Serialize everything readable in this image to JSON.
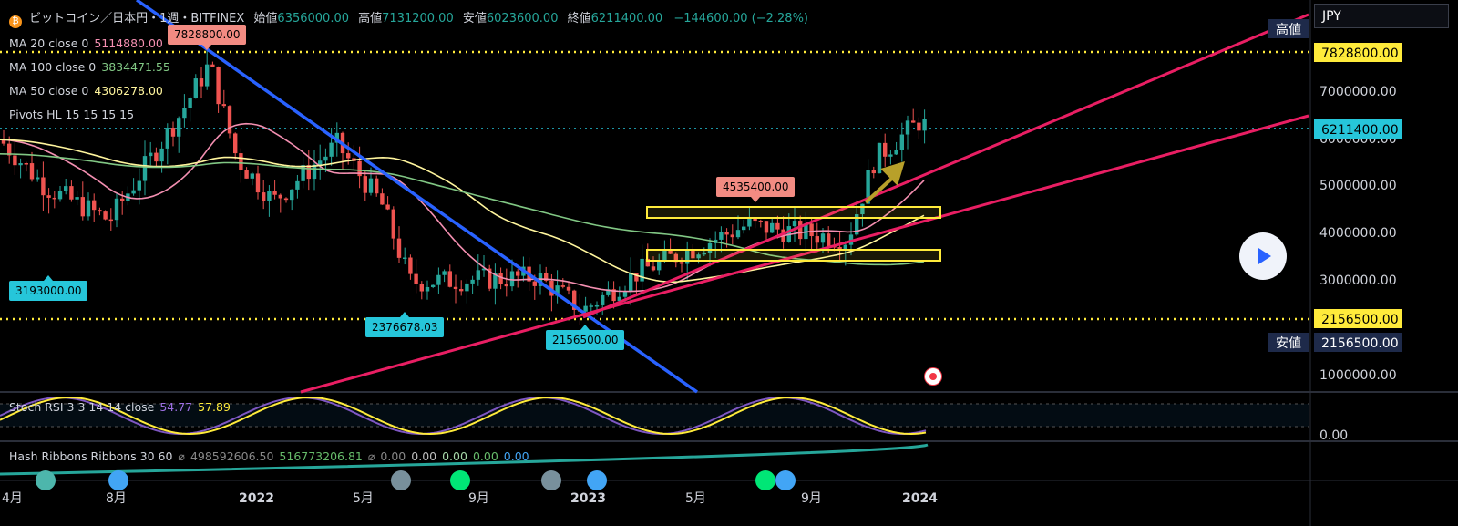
{
  "header": {
    "symbol": "ビットコイン／日本円・1週・BITFINEX",
    "open_label": "始値",
    "open": "6356000.00",
    "high_label": "高値",
    "high": "7131200.00",
    "low_label": "安値",
    "low": "6023600.00",
    "close_label": "終値",
    "close": "6211400.00",
    "change": "−144600.00 (−2.28%)"
  },
  "currency": "JPY",
  "indicators": {
    "ma20": {
      "label": "MA 20 close 0",
      "value": "5114880.00",
      "color": "#f48fb1"
    },
    "ma100": {
      "label": "MA 100 close 0",
      "value": "3834471.55",
      "color": "#81c784"
    },
    "ma50": {
      "label": "MA 50 close 0",
      "value": "4306278.00",
      "color": "#fff59d"
    },
    "pivots": {
      "label": "Pivots HL 15 15 15 15"
    }
  },
  "oscillators": {
    "stoch": {
      "label": "Stoch RSI 3 3 14 14 close",
      "k": "54.77",
      "d": "57.89"
    },
    "hash": {
      "label": "Hash Ribbons Ribbons 30 60",
      "vals": [
        "498592606.50",
        "516773206.81",
        "0.00",
        "0.00",
        "0.00",
        "0.00",
        "0.00"
      ]
    }
  },
  "price_axis": {
    "ticks": [
      "7000000.00",
      "6000000.00",
      "5000000.00",
      "4000000.00",
      "3000000.00",
      "2000000.00",
      "1000000.00"
    ],
    "high_label": "高値",
    "high_value": "7828800.00",
    "low_label": "安値",
    "low_value": "2156500.00",
    "last_price": "6211400.00",
    "stoch_zero": "0.00"
  },
  "time_axis": [
    "4月",
    "8月",
    "2022",
    "5月",
    "9月",
    "2023",
    "5月",
    "9月",
    "2024"
  ],
  "pivot_labels": [
    "7828800.00",
    "3193000.00",
    "2376678.03",
    "2156500.00",
    "4535400.00"
  ],
  "chart_data": {
    "type": "candlestick",
    "series": [
      {
        "name": "MA 20 close 0",
        "last": 5114880.0
      },
      {
        "name": "MA 100 close 0",
        "last": 3834471.55
      },
      {
        "name": "MA 50 close 0",
        "last": 4306278.0
      }
    ],
    "ohlc_last": {
      "open": 6356000.0,
      "high": 7131200.0,
      "low": 6023600.0,
      "close": 6211400.0
    },
    "ylim": [
      0,
      8000000
    ],
    "x": [
      "2021-04",
      "2024-01"
    ],
    "colors": {
      "up": "#26a69a",
      "down": "#ef5350",
      "trend_down": "#2962ff",
      "trend_up": "#e91e63",
      "zone": "#ffeb3b"
    }
  }
}
